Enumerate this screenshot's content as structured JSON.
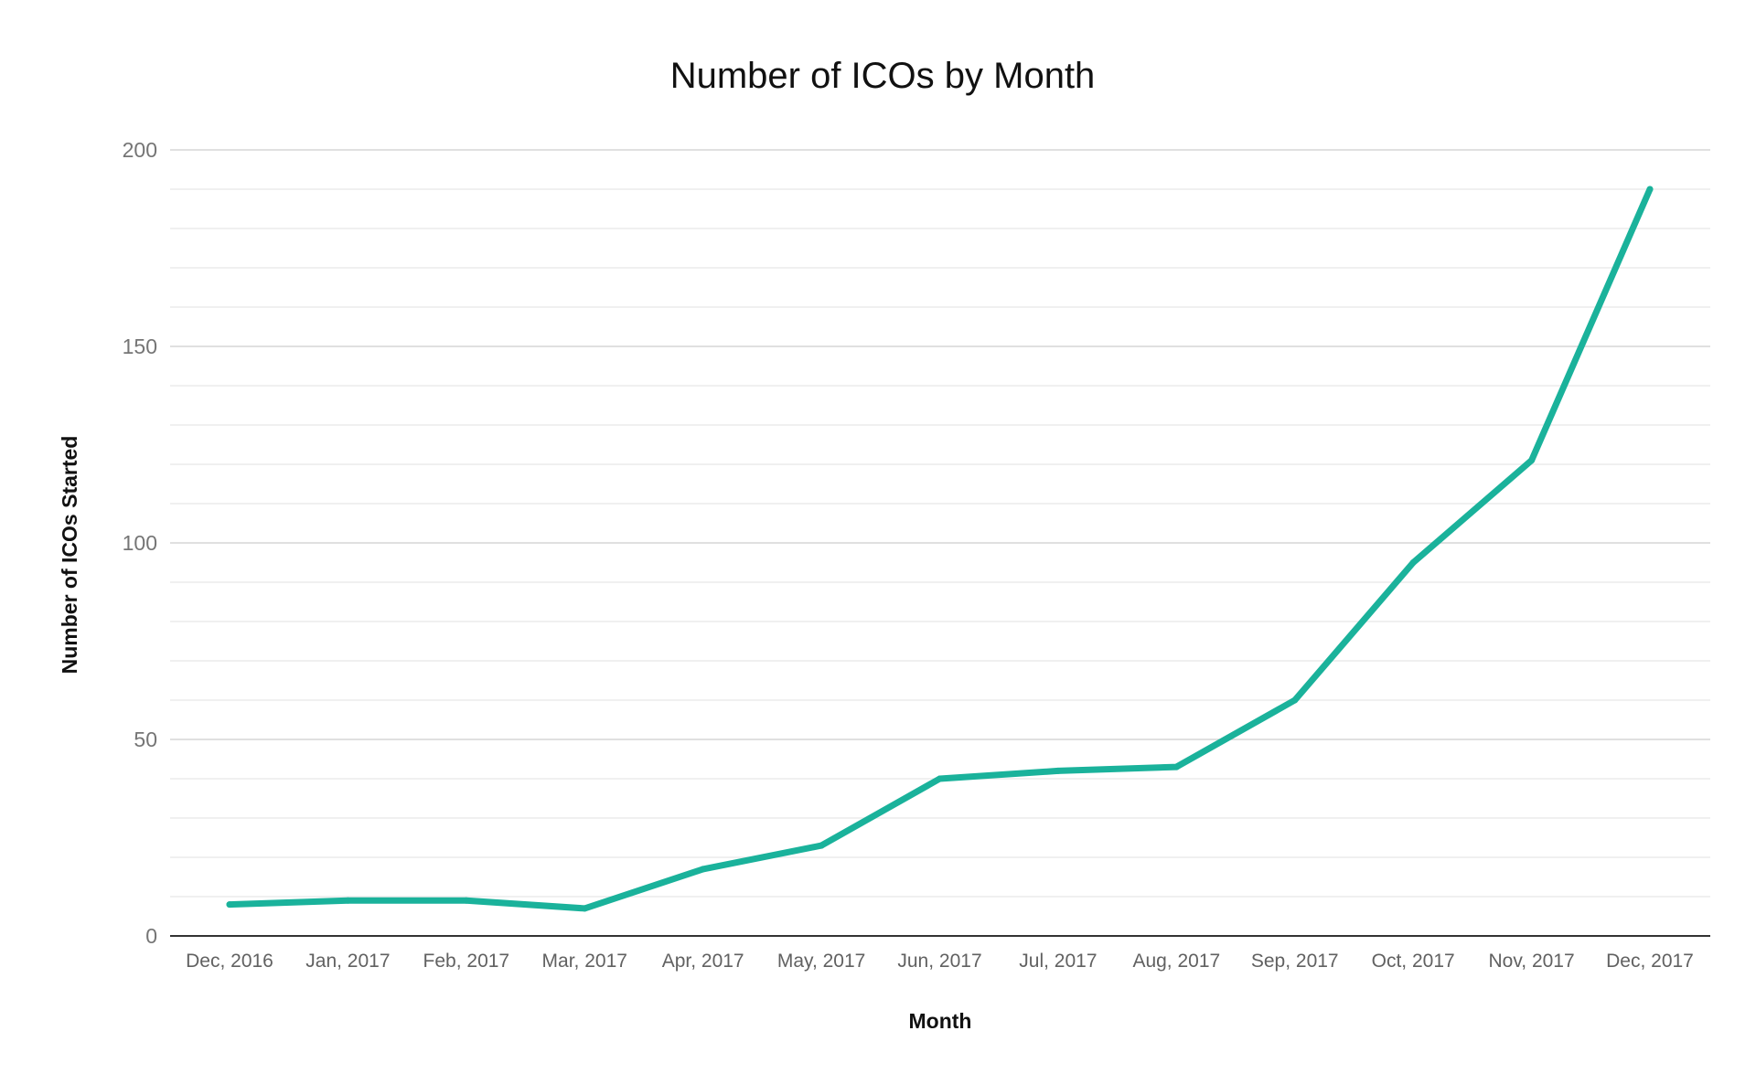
{
  "chart_data": {
    "type": "line",
    "title": "Number of ICOs by Month",
    "xlabel": "Month",
    "ylabel": "Number of ICOs Started",
    "categories": [
      "Dec, 2016",
      "Jan, 2017",
      "Feb, 2017",
      "Mar, 2017",
      "Apr, 2017",
      "May, 2017",
      "Jun, 2017",
      "Jul, 2017",
      "Aug, 2017",
      "Sep, 2017",
      "Oct, 2017",
      "Nov, 2017",
      "Dec, 2017"
    ],
    "series": [
      {
        "values": [
          8,
          9,
          9,
          7,
          17,
          23,
          40,
          42,
          43,
          60,
          95,
          121,
          190
        ],
        "color": "#1ab29b"
      }
    ],
    "ylim": [
      0,
      200
    ],
    "y_ticks": [
      "0",
      "50",
      "100",
      "150",
      "200"
    ],
    "minor_gridlines": true,
    "legend": "none"
  }
}
